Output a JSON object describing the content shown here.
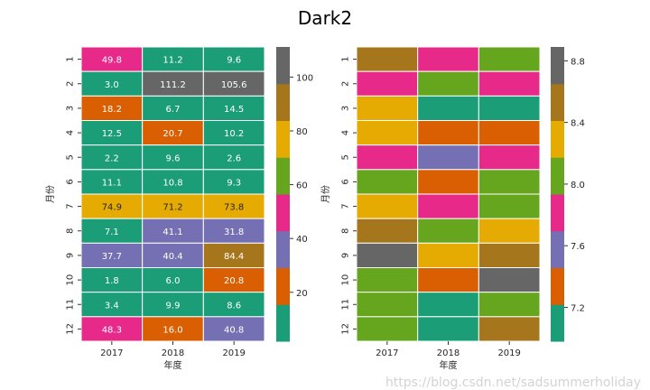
{
  "title": "Dark2",
  "watermark": "https://blog.csdn.net/sadsummerholiday",
  "palette": [
    "#1b9e77",
    "#d95f02",
    "#7570b3",
    "#e7298a",
    "#66a61e",
    "#e6ab02",
    "#a6761d",
    "#666666"
  ],
  "chart_data": [
    {
      "type": "heatmap",
      "xlabel": "年度",
      "ylabel": "月份",
      "x": [
        "2017",
        "2018",
        "2019"
      ],
      "y": [
        "1",
        "2",
        "3",
        "4",
        "5",
        "6",
        "7",
        "8",
        "9",
        "10",
        "11",
        "12"
      ],
      "annotated": true,
      "vmin": 1.8,
      "vmax": 111.2,
      "colorbar_ticks": [
        "20",
        "40",
        "60",
        "80",
        "100"
      ],
      "values": [
        [
          49.8,
          11.2,
          9.6
        ],
        [
          3.0,
          111.2,
          105.6
        ],
        [
          18.2,
          6.7,
          14.5
        ],
        [
          12.5,
          20.7,
          10.2
        ],
        [
          2.2,
          9.6,
          2.6
        ],
        [
          11.1,
          10.8,
          9.3
        ],
        [
          74.9,
          71.2,
          73.8
        ],
        [
          7.1,
          41.1,
          31.8
        ],
        [
          37.7,
          40.4,
          84.4
        ],
        [
          1.8,
          6.0,
          20.8
        ],
        [
          3.4,
          9.9,
          8.6
        ],
        [
          48.3,
          16.0,
          40.8
        ]
      ]
    },
    {
      "type": "heatmap",
      "xlabel": "年度",
      "ylabel": "月份",
      "x": [
        "2017",
        "2018",
        "2019"
      ],
      "y": [
        "1",
        "2",
        "3",
        "4",
        "5",
        "6",
        "7",
        "8",
        "9",
        "10",
        "11",
        "12"
      ],
      "annotated": false,
      "vmin": 6.98,
      "vmax": 8.89,
      "colorbar_ticks": [
        "7.2",
        "7.6",
        "8.0",
        "8.4",
        "8.8"
      ],
      "values": [
        [
          8.54,
          7.82,
          8.06
        ],
        [
          7.82,
          8.06,
          7.82
        ],
        [
          8.3,
          6.98,
          6.98
        ],
        [
          8.3,
          7.34,
          7.34
        ],
        [
          7.82,
          7.58,
          7.82
        ],
        [
          8.06,
          7.34,
          8.06
        ],
        [
          8.3,
          7.82,
          8.06
        ],
        [
          8.54,
          8.06,
          8.3
        ],
        [
          8.89,
          8.3,
          8.54
        ],
        [
          8.06,
          7.34,
          8.89
        ],
        [
          8.06,
          6.98,
          8.06
        ],
        [
          8.06,
          6.98,
          8.54
        ]
      ]
    }
  ]
}
